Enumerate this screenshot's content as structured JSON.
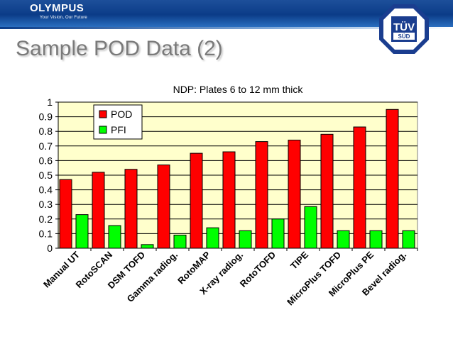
{
  "slide": {
    "logo_text": "OLYMPUS",
    "tagline": "Your Vision, Our Future",
    "title": "Sample POD Data (2)",
    "badge_top": "TÜV",
    "badge_bottom": "SÜD"
  },
  "chart_data": {
    "type": "bar",
    "title": "NDP: Plates 6 to 12 mm thick",
    "categories": [
      "Manual UT",
      "RotoSCAN",
      "DSM TOFD",
      "Gamma radiog.",
      "RotoMAP",
      "X-ray radiog.",
      "RotoTOFD",
      "TIPE",
      "MicroPlus TOFD",
      "MicroPlus PE",
      "Bevel radiog."
    ],
    "series": [
      {
        "name": "POD",
        "values": [
          0.47,
          0.52,
          0.54,
          0.57,
          0.65,
          0.66,
          0.73,
          0.74,
          0.78,
          0.83,
          0.95
        ]
      },
      {
        "name": "PFI",
        "values": [
          0.23,
          0.155,
          0.025,
          0.09,
          0.14,
          0.12,
          0.2,
          0.285,
          0.12,
          0.12,
          0.12
        ]
      }
    ],
    "ylim": [
      0,
      1
    ],
    "yticks": [
      "0",
      "0.1",
      "0.2",
      "0.3",
      "0.4",
      "0.5",
      "0.6",
      "0.7",
      "0.8",
      "0.9",
      "1"
    ],
    "xlabel": "",
    "ylabel": "",
    "grid": true,
    "legend": "top-left",
    "colors": {
      "POD": "#ff0000",
      "PFI": "#00ff00",
      "plot_bg": "#ffffcc",
      "header": "#0b3c88"
    }
  }
}
